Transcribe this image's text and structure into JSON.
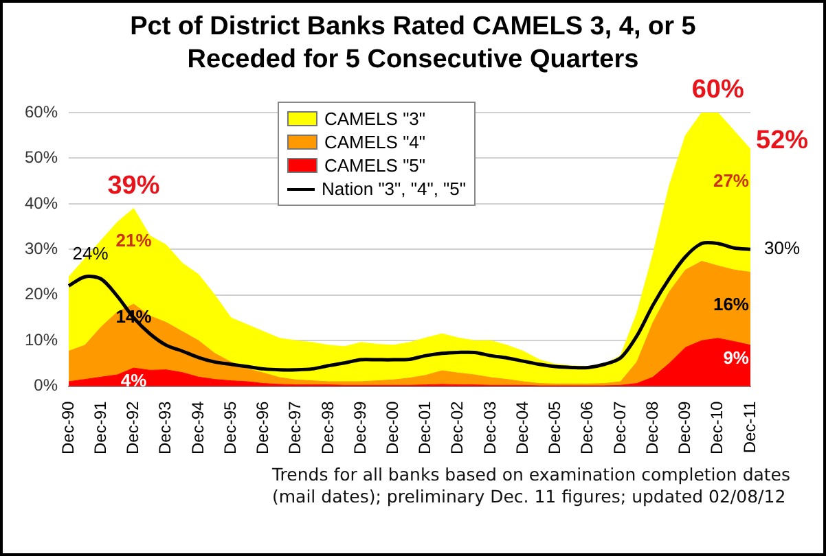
{
  "chart_data": {
    "type": "area",
    "title": "Pct of District Banks Rated CAMELS 3, 4, or 5 Receded for 5 Consecutive Quarters",
    "categories": [
      "Dec-90",
      null,
      "Dec-91",
      null,
      "Dec-92",
      null,
      "Dec-93",
      null,
      "Dec-94",
      null,
      "Dec-95",
      null,
      "Dec-96",
      null,
      "Dec-97",
      null,
      "Dec-98",
      null,
      "Dec-99",
      null,
      "Dec-00",
      null,
      "Dec-01",
      null,
      "Dec-02",
      null,
      "Dec-03",
      null,
      "Dec-04",
      null,
      "Dec-05",
      null,
      "Dec-06",
      null,
      "Dec-07",
      null,
      "Dec-08",
      null,
      "Dec-09",
      null,
      "Dec-10",
      null,
      "Dec-11"
    ],
    "stacked": true,
    "series": [
      {
        "name": "CAMELS \"5\"",
        "color": "#ff0000",
        "values": [
          1,
          1.5,
          2,
          2.5,
          4,
          3.5,
          3.6,
          3,
          2,
          1.5,
          1.2,
          1,
          0.6,
          0.4,
          0.3,
          0.3,
          0.3,
          0.2,
          0.2,
          0.2,
          0.2,
          0.2,
          0.3,
          0.4,
          0.3,
          0.3,
          0.2,
          0.2,
          0.2,
          0.1,
          0.1,
          0.1,
          0.1,
          0.1,
          0.2,
          0.6,
          2,
          5,
          8.5,
          10,
          10.5,
          9.8,
          9
        ],
        "value_labels": [
          null,
          null,
          null,
          null,
          "4%",
          null,
          null,
          null,
          null,
          null,
          null,
          null,
          null,
          null,
          null,
          null,
          null,
          null,
          null,
          null,
          null,
          null,
          null,
          null,
          null,
          null,
          null,
          null,
          null,
          null,
          null,
          null,
          null,
          null,
          null,
          null,
          null,
          null,
          null,
          null,
          null,
          null,
          "9%"
        ]
      },
      {
        "name": "CAMELS \"4\"",
        "color": "#ff9900",
        "values": [
          6.7,
          7.5,
          11,
          13.8,
          14,
          11.9,
          10.4,
          9,
          8,
          5.7,
          4.1,
          2.8,
          2.3,
          1.5,
          1.1,
          0.9,
          0.7,
          0.8,
          0.8,
          1,
          1.2,
          1.6,
          2.1,
          3,
          2.6,
          2.2,
          1.7,
          1.3,
          0.8,
          0.5,
          0.4,
          0.4,
          0.4,
          0.5,
          0.8,
          4.7,
          12,
          15.7,
          17,
          17.4,
          15.9,
          15.7,
          16
        ],
        "value_labels": [
          null,
          null,
          null,
          null,
          "14%",
          null,
          null,
          null,
          null,
          null,
          null,
          null,
          null,
          null,
          null,
          null,
          null,
          null,
          null,
          null,
          null,
          null,
          null,
          null,
          null,
          null,
          null,
          null,
          null,
          null,
          null,
          null,
          null,
          null,
          null,
          null,
          null,
          null,
          null,
          null,
          null,
          null,
          "16%"
        ]
      },
      {
        "name": "CAMELS \"3\"",
        "color": "#ffff00",
        "values": [
          16.3,
          19,
          19,
          19.7,
          21,
          17.6,
          17,
          15,
          14.5,
          12.8,
          9.7,
          9.7,
          9.1,
          8.6,
          8.6,
          8.4,
          8,
          7.7,
          8.6,
          8,
          7.6,
          7.8,
          8.2,
          8.1,
          7.7,
          7.5,
          8.1,
          7.5,
          6.7,
          5.2,
          4.3,
          4,
          3.8,
          4.2,
          5.7,
          10.7,
          15,
          23.3,
          29.5,
          32.6,
          33.6,
          30.5,
          27
        ],
        "value_labels": [
          null,
          null,
          null,
          null,
          "21%",
          null,
          null,
          null,
          null,
          null,
          null,
          null,
          null,
          null,
          null,
          null,
          null,
          null,
          null,
          null,
          null,
          null,
          null,
          null,
          null,
          null,
          null,
          null,
          null,
          null,
          null,
          null,
          null,
          null,
          null,
          null,
          null,
          null,
          null,
          null,
          null,
          null,
          "27%"
        ]
      },
      {
        "name": "Nation \"3\", \"4\", \"5\"",
        "type": "line",
        "color": "#000000",
        "values": [
          22,
          24,
          23.5,
          19.7,
          15,
          11.5,
          9,
          7.7,
          6.3,
          5.3,
          4.8,
          4.3,
          3.8,
          3.6,
          3.6,
          3.8,
          4.5,
          5.1,
          5.8,
          5.8,
          5.8,
          5.9,
          6.7,
          7.2,
          7.4,
          7.4,
          6.7,
          6.2,
          5.5,
          4.8,
          4.3,
          4.1,
          4.1,
          4.8,
          6.2,
          11,
          17.8,
          23.6,
          28.4,
          31.3,
          31.3,
          30.3,
          30
        ],
        "value_labels": [
          null,
          "24%",
          null,
          null,
          null,
          null,
          null,
          null,
          null,
          null,
          null,
          null,
          null,
          null,
          null,
          null,
          null,
          null,
          null,
          null,
          null,
          null,
          null,
          null,
          null,
          null,
          null,
          null,
          null,
          null,
          null,
          null,
          null,
          null,
          null,
          null,
          null,
          null,
          null,
          null,
          null,
          null,
          "30%"
        ]
      }
    ],
    "totals": [
      null,
      null,
      null,
      null,
      "39%",
      null,
      null,
      null,
      null,
      null,
      null,
      null,
      null,
      null,
      null,
      null,
      null,
      null,
      null,
      null,
      null,
      null,
      null,
      null,
      null,
      null,
      null,
      null,
      null,
      null,
      null,
      null,
      null,
      null,
      null,
      null,
      null,
      null,
      null,
      null,
      "60%",
      null,
      "52%"
    ],
    "ylim": [
      0,
      60
    ],
    "yticks": [
      {
        "value": 0,
        "label": "0%"
      },
      {
        "value": 10,
        "label": "10%"
      },
      {
        "value": 20,
        "label": "20%"
      },
      {
        "value": 30,
        "label": "30%"
      },
      {
        "value": 40,
        "label": "40%"
      },
      {
        "value": 50,
        "label": "50%"
      },
      {
        "value": 60,
        "label": "60%"
      }
    ],
    "grid": "y",
    "legend": "top",
    "marker": "none",
    "line_style": "solid",
    "annotations": [
      "Trends for all banks based on examination completion dates (mail dates); preliminary Dec. 11 figures; updated 02/08/12"
    ]
  }
}
